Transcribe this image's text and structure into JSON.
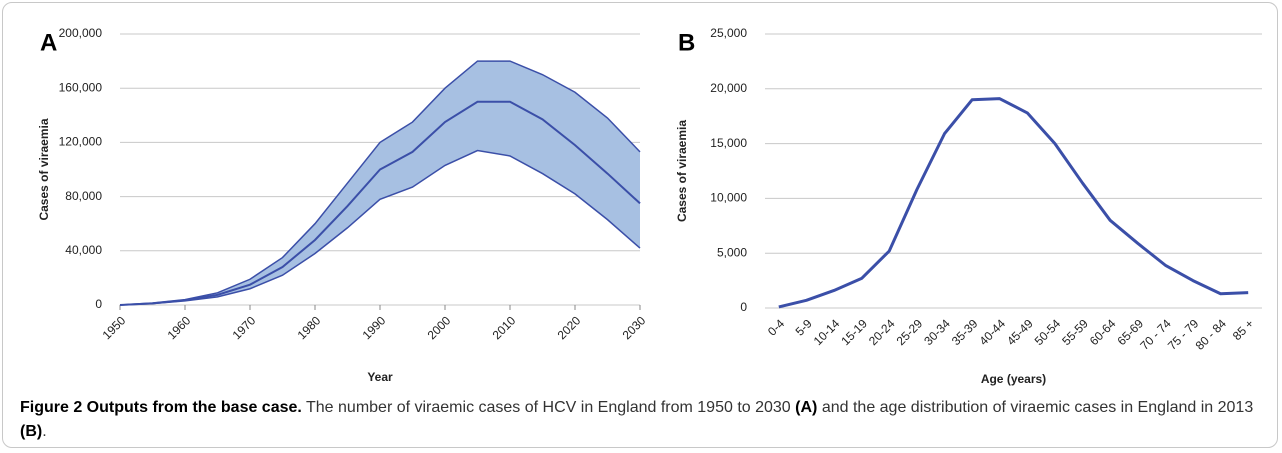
{
  "chart_data": [
    {
      "type": "band",
      "panel": "A",
      "ylabel": "Cases of viraemia",
      "xlabel": "Year",
      "x": [
        1950,
        1955,
        1960,
        1965,
        1970,
        1975,
        1980,
        1985,
        1990,
        1995,
        2000,
        2005,
        2010,
        2015,
        2020,
        2025,
        2030
      ],
      "values": [
        0,
        1200,
        3500,
        7500,
        15000,
        28000,
        48000,
        73000,
        100000,
        113000,
        135000,
        150000,
        150000,
        137000,
        118000,
        97000,
        75000
      ],
      "lower": [
        0,
        1000,
        3000,
        6000,
        12000,
        22000,
        38000,
        57000,
        78000,
        87000,
        103000,
        114000,
        110000,
        97000,
        82000,
        63000,
        42000
      ],
      "upper": [
        0,
        1500,
        4000,
        9000,
        19000,
        35000,
        60000,
        90000,
        120000,
        135000,
        160000,
        180000,
        180000,
        170000,
        157000,
        138000,
        113000
      ],
      "color": "#3b4fa8",
      "fill": "#a7c0e2",
      "xlim": [
        1950,
        2030
      ],
      "xticks": [
        1950,
        1960,
        1970,
        1980,
        1990,
        2000,
        2010,
        2020,
        2030
      ],
      "ylim": [
        0,
        200000
      ],
      "yticks": [
        0,
        {
          "value": 40000,
          "label": "40,000"
        },
        {
          "value": 80000,
          "label": "80,000"
        },
        {
          "value": 120000,
          "label": "120,000"
        },
        {
          "value": 160000,
          "label": "160,000"
        },
        {
          "value": 200000,
          "label": "200,000"
        }
      ],
      "grid": true
    },
    {
      "type": "line",
      "panel": "B",
      "ylabel": "Cases of viraemia",
      "xlabel": "Age (years)",
      "categories": [
        "0-4",
        "5-9",
        "10-14",
        "15-19",
        "20-24",
        "25-29",
        "30-34",
        "35-39",
        "40-44",
        "45-49",
        "50-54",
        "55-59",
        "60-64",
        "65-69",
        "70 - 74",
        "75 - 79",
        "80 - 84",
        "85 +"
      ],
      "values": [
        100,
        700,
        1600,
        2700,
        5200,
        10800,
        15900,
        19000,
        19100,
        17800,
        15000,
        11400,
        8000,
        5900,
        3900,
        2500,
        1300,
        1400
      ],
      "color": "#3b4fa8",
      "ylim": [
        0,
        25000
      ],
      "yticks": [
        0,
        {
          "value": 5000,
          "label": "5,000"
        },
        {
          "value": 10000,
          "label": "10,000"
        },
        {
          "value": 15000,
          "label": "15,000"
        },
        {
          "value": 20000,
          "label": "20,000"
        },
        {
          "value": 25000,
          "label": "25,000"
        }
      ],
      "grid": true
    }
  ],
  "caption": {
    "title": "Figure 2 Outputs from the base case.",
    "text": [
      "The number of viraemic cases of HCV in England from 1950 to 2030",
      "(A)",
      "and the age distribution of viraemic cases in England in 2013",
      "(B)",
      "."
    ]
  }
}
